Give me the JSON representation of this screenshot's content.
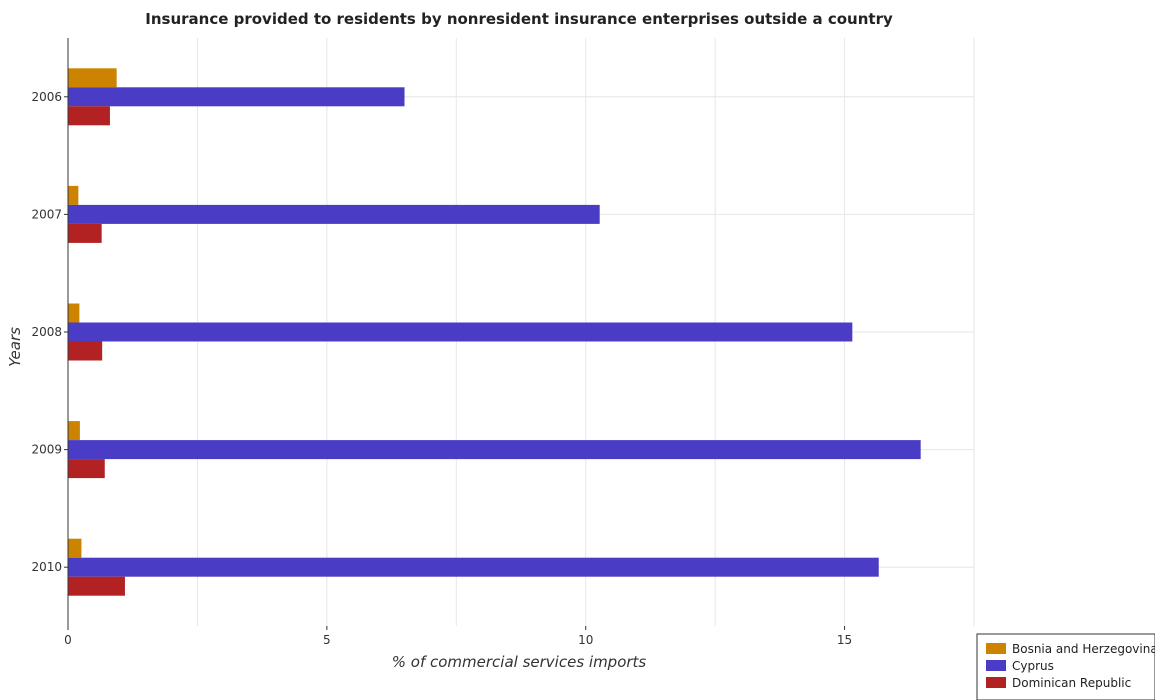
{
  "chart_data": {
    "type": "bar",
    "orientation": "horizontal",
    "title": "Insurance provided to residents by nonresident insurance enterprises outside a country",
    "xlabel": "% of commercial services imports",
    "ylabel": "Years",
    "categories": [
      "2006",
      "2007",
      "2008",
      "2009",
      "2010"
    ],
    "xlim": [
      0,
      17.5
    ],
    "xticks": [
      0,
      5,
      10,
      15
    ],
    "grid": true,
    "legend_position": "bottom-right",
    "series": [
      {
        "name": "Bosnia and Herzegovina",
        "color": "#cc8400",
        "values": [
          0.94,
          0.2,
          0.22,
          0.23,
          0.26
        ]
      },
      {
        "name": "Cyprus",
        "color": "#4a3cc4",
        "values": [
          6.5,
          10.27,
          15.15,
          16.47,
          15.66
        ]
      },
      {
        "name": "Dominican Republic",
        "color": "#b22222",
        "values": [
          0.81,
          0.65,
          0.66,
          0.71,
          1.1
        ]
      }
    ]
  }
}
